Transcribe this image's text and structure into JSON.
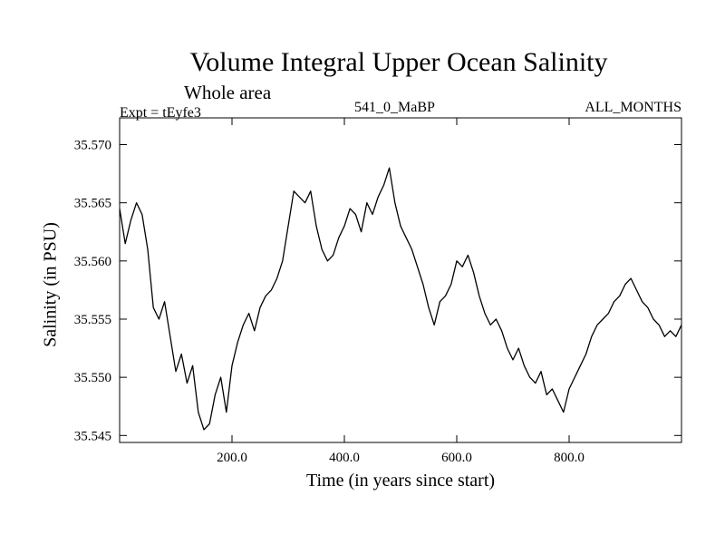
{
  "chart_data": {
    "type": "line",
    "title": "Volume Integral Upper Ocean Salinity",
    "subtitle": "Whole area",
    "experiment": "Expt = tEyfe3",
    "center_label": "541_0_MaBP",
    "months_label": "ALL_MONTHS",
    "xlabel": "Time (in years since start)",
    "ylabel": "Salinity (in PSU)",
    "xlim": [
      0,
      1000
    ],
    "ylim": [
      35.5444,
      35.5723
    ],
    "xticks": [
      200,
      400,
      600,
      800
    ],
    "xtick_labels": [
      "200.0",
      "400.0",
      "600.0",
      "800.0"
    ],
    "yticks": [
      35.545,
      35.55,
      35.555,
      35.56,
      35.565,
      35.57
    ],
    "ytick_labels": [
      "35.545",
      "35.550",
      "35.555",
      "35.560",
      "35.565",
      "35.570"
    ],
    "grid": false,
    "series": [
      {
        "name": "Salinity",
        "x": [
          0,
          10,
          20,
          30,
          40,
          50,
          60,
          70,
          80,
          90,
          100,
          110,
          120,
          130,
          140,
          150,
          160,
          170,
          180,
          190,
          200,
          210,
          220,
          230,
          240,
          250,
          260,
          270,
          280,
          290,
          300,
          310,
          320,
          330,
          340,
          350,
          360,
          370,
          380,
          390,
          400,
          410,
          420,
          430,
          440,
          450,
          460,
          470,
          480,
          490,
          500,
          510,
          520,
          530,
          540,
          550,
          560,
          570,
          580,
          590,
          600,
          610,
          620,
          630,
          640,
          650,
          660,
          670,
          680,
          690,
          700,
          710,
          720,
          730,
          740,
          750,
          760,
          770,
          780,
          790,
          800,
          810,
          820,
          830,
          840,
          850,
          860,
          870,
          880,
          890,
          900,
          910,
          920,
          930,
          940,
          950,
          960,
          970,
          980,
          990,
          1000
        ],
        "values": [
          35.5645,
          35.5615,
          35.5635,
          35.565,
          35.564,
          35.561,
          35.556,
          35.555,
          35.5565,
          35.5535,
          35.5505,
          35.552,
          35.5495,
          35.551,
          35.547,
          35.5455,
          35.546,
          35.5485,
          35.55,
          35.547,
          35.551,
          35.553,
          35.5545,
          35.5555,
          35.554,
          35.556,
          35.557,
          35.5575,
          35.5585,
          35.56,
          35.563,
          35.566,
          35.5655,
          35.565,
          35.566,
          35.563,
          35.561,
          35.56,
          35.5605,
          35.562,
          35.563,
          35.5645,
          35.564,
          35.5625,
          35.565,
          35.564,
          35.5655,
          35.5665,
          35.568,
          35.565,
          35.563,
          35.562,
          35.561,
          35.5595,
          35.558,
          35.556,
          35.5545,
          35.5565,
          35.557,
          35.558,
          35.56,
          35.5595,
          35.5605,
          35.559,
          35.557,
          35.5555,
          35.5545,
          35.555,
          35.554,
          35.5525,
          35.5515,
          35.5525,
          35.551,
          35.55,
          35.5495,
          35.5505,
          35.5485,
          35.549,
          35.548,
          35.547,
          35.549,
          35.55,
          35.551,
          35.552,
          35.5535,
          35.5545,
          35.555,
          35.5555,
          35.5565,
          35.557,
          35.558,
          35.5585,
          35.5575,
          35.5565,
          35.556,
          35.555,
          35.5545,
          35.5535,
          35.554,
          35.5535,
          35.5545
        ]
      }
    ]
  }
}
